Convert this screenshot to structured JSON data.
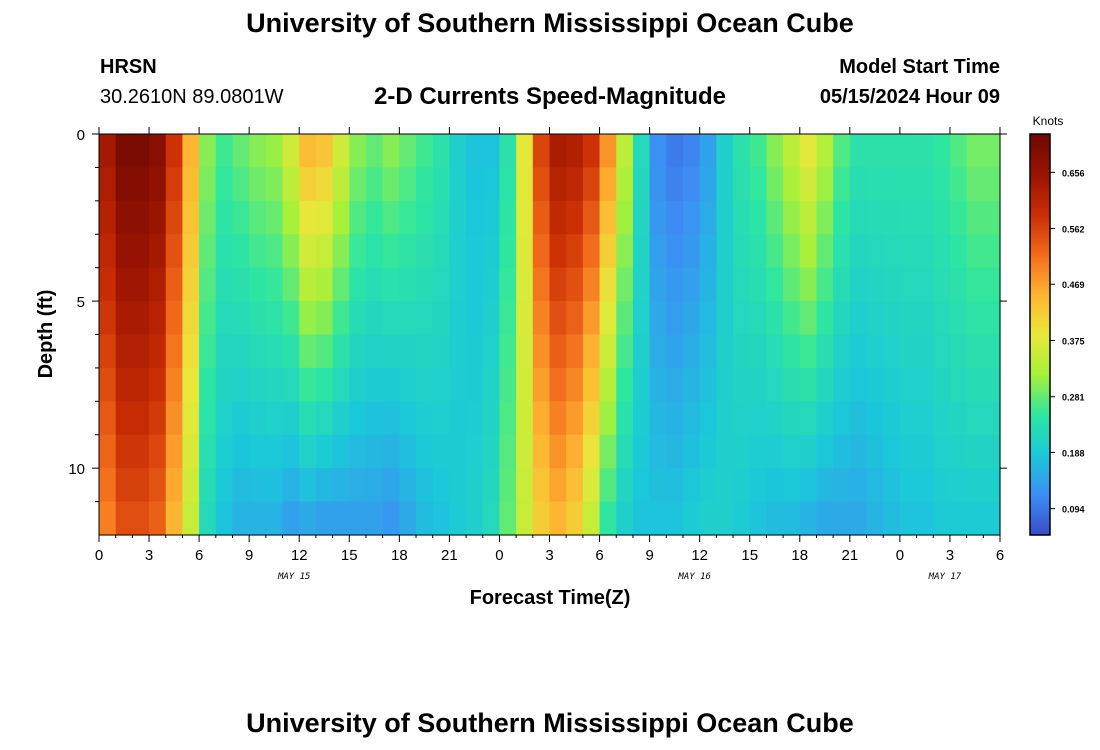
{
  "header": {
    "title": "University of Southern Mississippi Ocean Cube",
    "station": "HRSN",
    "coordinates": "30.2610N  89.0801W",
    "subtitle": "2-D Currents Speed-Magnitude",
    "model_start_label": "Model Start Time",
    "model_start_value": "05/15/2024 Hour 09"
  },
  "footer": {
    "title": "University of Southern Mississippi Ocean Cube"
  },
  "chart_data": {
    "type": "heatmap",
    "title": "2-D Currents Speed-Magnitude",
    "xlabel": "Forecast Time(Z)",
    "ylabel": "Depth (ft)",
    "x_range_hours": [
      0,
      54
    ],
    "y_range_ft": [
      0,
      12
    ],
    "y_inverted": true,
    "x_tick_labels": [
      "0",
      "3",
      "6",
      "9",
      "12",
      "15",
      "18",
      "21",
      "0",
      "3",
      "6",
      "9",
      "12",
      "15",
      "18",
      "21",
      "0",
      "3",
      "6"
    ],
    "y_tick_labels": [
      "0",
      "5",
      "10"
    ],
    "y_tick_values": [
      0,
      5,
      10
    ],
    "date_labels": [
      {
        "hour": 12,
        "label": "MAY 15"
      },
      {
        "hour": 36,
        "label": "MAY 16"
      },
      {
        "hour": 51,
        "label": "MAY 17"
      }
    ],
    "colorbar": {
      "unit": "Knots",
      "min": 0.05,
      "max": 0.72,
      "tick_labels": [
        "0.656",
        "0.562",
        "0.469",
        "0.375",
        "0.281",
        "0.188",
        "0.094"
      ],
      "tick_values": [
        0.656,
        0.562,
        0.469,
        0.375,
        0.281,
        0.188,
        0.094
      ],
      "colors": [
        "#3b4bc8",
        "#3d8df5",
        "#1bc8d9",
        "#2ee6a0",
        "#a6f03a",
        "#e8e83a",
        "#ffb432",
        "#f26a1b",
        "#c92d04",
        "#9a1402",
        "#6e0801"
      ]
    },
    "hours": [
      0,
      1,
      2,
      3,
      4,
      5,
      6,
      7,
      8,
      9,
      10,
      11,
      12,
      13,
      14,
      15,
      16,
      17,
      18,
      19,
      20,
      21,
      22,
      23,
      24,
      25,
      26,
      27,
      28,
      29,
      30,
      31,
      32,
      33,
      34,
      35,
      36,
      37,
      38,
      39,
      40,
      41,
      42,
      43,
      44,
      45,
      46,
      47,
      48,
      49,
      50,
      51,
      52,
      53,
      54
    ],
    "depths_ft": [
      0.5,
      1.5,
      2.5,
      3.5,
      4.5,
      5.5,
      6.5,
      7.5,
      8.5,
      9.5,
      10.5,
      11.5
    ],
    "surface_speed_knots": [
      0.64,
      0.7,
      0.7,
      0.68,
      0.58,
      0.45,
      0.3,
      0.26,
      0.28,
      0.3,
      0.31,
      0.36,
      0.44,
      0.43,
      0.36,
      0.3,
      0.28,
      0.3,
      0.28,
      0.26,
      0.24,
      0.2,
      0.18,
      0.18,
      0.24,
      0.38,
      0.56,
      0.63,
      0.62,
      0.58,
      0.48,
      0.34,
      0.22,
      0.12,
      0.1,
      0.11,
      0.14,
      0.2,
      0.24,
      0.26,
      0.3,
      0.34,
      0.38,
      0.33,
      0.27,
      0.24,
      0.24,
      0.24,
      0.24,
      0.24,
      0.25,
      0.27,
      0.29,
      0.29,
      0.29
    ],
    "bottom_speed_knots": [
      0.5,
      0.55,
      0.55,
      0.53,
      0.45,
      0.35,
      0.22,
      0.18,
      0.16,
      0.16,
      0.16,
      0.14,
      0.15,
      0.14,
      0.14,
      0.14,
      0.14,
      0.13,
      0.15,
      0.17,
      0.18,
      0.19,
      0.2,
      0.22,
      0.28,
      0.35,
      0.42,
      0.45,
      0.42,
      0.35,
      0.25,
      0.2,
      0.18,
      0.18,
      0.18,
      0.19,
      0.2,
      0.2,
      0.19,
      0.18,
      0.17,
      0.17,
      0.16,
      0.15,
      0.15,
      0.15,
      0.16,
      0.17,
      0.18,
      0.18,
      0.19,
      0.19,
      0.19,
      0.19,
      0.19
    ]
  }
}
